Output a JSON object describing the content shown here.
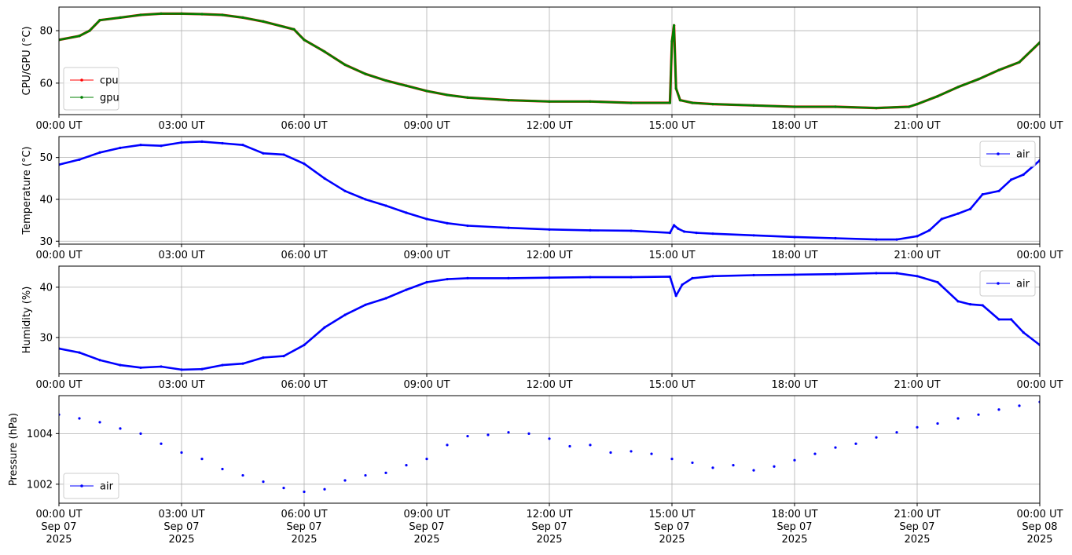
{
  "chart_data": [
    {
      "type": "line",
      "ylabel": "CPU/GPU (°C)",
      "xlim": [
        "2025-09-07T00:00",
        "2025-09-08T00:00"
      ],
      "ylim": [
        48,
        89
      ],
      "yticks": [
        60,
        80
      ],
      "ytick_labels": [
        "60",
        "80"
      ],
      "xtick_labels": [
        "00:00 UT",
        "03:00 UT",
        "06:00 UT",
        "09:00 UT",
        "12:00 UT",
        "15:00 UT",
        "18:00 UT",
        "21:00 UT",
        "00:00 UT"
      ],
      "grid": true,
      "legend": "lower-left",
      "x": [
        0,
        0.5,
        0.75,
        1.0,
        1.5,
        2.0,
        2.5,
        3.0,
        3.5,
        4.0,
        4.5,
        5.0,
        5.5,
        5.75,
        6.0,
        6.5,
        7.0,
        7.5,
        8.0,
        8.5,
        9.0,
        9.5,
        10.0,
        11.0,
        12.0,
        13.0,
        14.0,
        14.95,
        15.0,
        15.05,
        15.1,
        15.2,
        15.5,
        16.0,
        17.0,
        18.0,
        19.0,
        20.0,
        20.8,
        21.0,
        21.5,
        22.0,
        22.5,
        23.0,
        23.5,
        24.0
      ],
      "series": [
        {
          "name": "cpu",
          "color": "#ff0000",
          "values": [
            76.5,
            78.0,
            80.0,
            84.0,
            85.0,
            86.0,
            86.5,
            86.5,
            86.3,
            86.0,
            85.0,
            83.5,
            81.5,
            80.5,
            76.5,
            72.0,
            67.0,
            63.5,
            61.0,
            59.0,
            57.0,
            55.5,
            54.5,
            53.5,
            53.0,
            53.0,
            52.5,
            52.5,
            76.0,
            82.0,
            58.0,
            53.5,
            52.5,
            52.0,
            51.5,
            51.0,
            51.0,
            50.5,
            51.0,
            52.0,
            55.0,
            58.5,
            61.5,
            65.0,
            68.0,
            75.5
          ]
        },
        {
          "name": "gpu",
          "color": "#008000",
          "values": [
            76.5,
            78.0,
            80.0,
            84.0,
            85.0,
            86.0,
            86.5,
            86.5,
            86.3,
            86.0,
            85.0,
            83.5,
            81.5,
            80.5,
            76.5,
            72.0,
            67.0,
            63.5,
            61.0,
            59.0,
            57.0,
            55.5,
            54.5,
            53.5,
            53.0,
            53.0,
            52.5,
            52.5,
            76.0,
            82.0,
            58.0,
            53.5,
            52.5,
            52.0,
            51.5,
            51.0,
            51.0,
            50.5,
            51.0,
            52.0,
            55.0,
            58.5,
            61.5,
            65.0,
            68.0,
            75.5
          ]
        }
      ]
    },
    {
      "type": "line",
      "ylabel": "Temperature (°C)",
      "xlim": [
        "2025-09-07T00:00",
        "2025-09-08T00:00"
      ],
      "ylim": [
        29.3,
        55
      ],
      "yticks": [
        30,
        40,
        50
      ],
      "ytick_labels": [
        "30",
        "40",
        "50"
      ],
      "xtick_labels": [
        "00:00 UT",
        "03:00 UT",
        "06:00 UT",
        "09:00 UT",
        "12:00 UT",
        "15:00 UT",
        "18:00 UT",
        "21:00 UT",
        "00:00 UT"
      ],
      "grid": true,
      "legend": "upper-right",
      "x": [
        0,
        0.5,
        1.0,
        1.5,
        2.0,
        2.5,
        3.0,
        3.5,
        4.0,
        4.5,
        5.0,
        5.5,
        6.0,
        6.5,
        7.0,
        7.5,
        8.0,
        8.5,
        9.0,
        9.5,
        10.0,
        11.0,
        12.0,
        13.0,
        14.0,
        14.95,
        15.05,
        15.15,
        15.3,
        15.6,
        16.0,
        17.0,
        18.0,
        19.0,
        20.0,
        20.5,
        21.0,
        21.3,
        21.6,
        22.0,
        22.3,
        22.6,
        23.0,
        23.3,
        23.6,
        24.0
      ],
      "series": [
        {
          "name": "air",
          "color": "#0000ff",
          "values": [
            48.3,
            49.5,
            51.2,
            52.3,
            53.0,
            52.8,
            53.6,
            53.8,
            53.4,
            53.0,
            51.0,
            50.7,
            48.5,
            45.0,
            42.0,
            40.0,
            38.5,
            36.8,
            35.3,
            34.3,
            33.7,
            33.2,
            32.8,
            32.6,
            32.5,
            32.0,
            33.8,
            33.0,
            32.3,
            32.0,
            31.8,
            31.4,
            31.0,
            30.7,
            30.4,
            30.4,
            31.2,
            32.6,
            35.3,
            36.6,
            37.7,
            41.2,
            42.0,
            44.7,
            45.9,
            49.3
          ]
        }
      ]
    },
    {
      "type": "line",
      "ylabel": "Humidity (%)",
      "xlim": [
        "2025-09-07T00:00",
        "2025-09-08T00:00"
      ],
      "ylim": [
        22.8,
        44.2
      ],
      "yticks": [
        30,
        40
      ],
      "ytick_labels": [
        "30",
        "40"
      ],
      "xtick_labels": [
        "00:00 UT",
        "03:00 UT",
        "06:00 UT",
        "09:00 UT",
        "12:00 UT",
        "15:00 UT",
        "18:00 UT",
        "21:00 UT",
        "00:00 UT"
      ],
      "grid": true,
      "legend": "upper-right",
      "x": [
        0,
        0.5,
        1.0,
        1.5,
        2.0,
        2.5,
        3.0,
        3.5,
        4.0,
        4.5,
        5.0,
        5.5,
        6.0,
        6.5,
        7.0,
        7.5,
        8.0,
        8.5,
        9.0,
        9.5,
        10.0,
        11.0,
        12.0,
        13.0,
        14.0,
        14.95,
        15.1,
        15.25,
        15.5,
        16.0,
        17.0,
        18.0,
        19.0,
        20.0,
        20.5,
        21.0,
        21.5,
        22.0,
        22.3,
        22.6,
        23.0,
        23.3,
        23.6,
        24.0
      ],
      "series": [
        {
          "name": "air",
          "color": "#0000ff",
          "values": [
            27.8,
            27.0,
            25.5,
            24.5,
            24.0,
            24.2,
            23.6,
            23.7,
            24.5,
            24.8,
            26.0,
            26.3,
            28.5,
            32.0,
            34.5,
            36.5,
            37.8,
            39.5,
            41.0,
            41.6,
            41.8,
            41.8,
            41.9,
            42.0,
            42.0,
            42.1,
            38.3,
            40.5,
            41.8,
            42.2,
            42.4,
            42.5,
            42.6,
            42.8,
            42.8,
            42.2,
            41.0,
            37.2,
            36.6,
            36.4,
            33.6,
            33.6,
            31.0,
            28.5
          ]
        }
      ]
    },
    {
      "type": "scatter",
      "ylabel": "Pressure (hPa)",
      "xlim": [
        "2025-09-07T00:00",
        "2025-09-08T00:00"
      ],
      "ylim": [
        1001.25,
        1005.5
      ],
      "yticks": [
        1002,
        1004
      ],
      "ytick_labels": [
        "1002",
        "1004"
      ],
      "xtick_labels": [
        "00:00 UT\nSep 07\n2025",
        "03:00 UT\nSep 07\n2025",
        "06:00 UT\nSep 07\n2025",
        "09:00 UT\nSep 07\n2025",
        "12:00 UT\nSep 07\n2025",
        "15:00 UT\nSep 07\n2025",
        "18:00 UT\nSep 07\n2025",
        "21:00 UT\nSep 07\n2025",
        "00:00 UT\nSep 08\n2025"
      ],
      "grid": true,
      "legend": "lower-left",
      "x": [
        0,
        0.5,
        1.0,
        1.5,
        2.0,
        2.5,
        3.0,
        3.5,
        4.0,
        4.5,
        5.0,
        5.5,
        6.0,
        6.5,
        7.0,
        7.5,
        8.0,
        8.5,
        9.0,
        9.5,
        10.0,
        10.5,
        11.0,
        11.5,
        12.0,
        12.5,
        13.0,
        13.5,
        14.0,
        14.5,
        15.0,
        15.5,
        16.0,
        16.5,
        17.0,
        17.5,
        18.0,
        18.5,
        19.0,
        19.5,
        20.0,
        20.5,
        21.0,
        21.5,
        22.0,
        22.5,
        23.0,
        23.5,
        24.0
      ],
      "series": [
        {
          "name": "air",
          "color": "#0000ff",
          "values": [
            1004.75,
            1004.6,
            1004.45,
            1004.2,
            1004.0,
            1003.6,
            1003.25,
            1003.0,
            1002.6,
            1002.35,
            1002.1,
            1001.85,
            1001.7,
            1001.8,
            1002.15,
            1002.35,
            1002.45,
            1002.75,
            1003.0,
            1003.55,
            1003.9,
            1003.95,
            1004.05,
            1004.0,
            1003.8,
            1003.5,
            1003.55,
            1003.25,
            1003.3,
            1003.2,
            1003.0,
            1002.85,
            1002.65,
            1002.75,
            1002.55,
            1002.7,
            1002.95,
            1003.2,
            1003.45,
            1003.6,
            1003.85,
            1004.05,
            1004.25,
            1004.4,
            1004.6,
            1004.75,
            1004.95,
            1005.1,
            1005.25
          ]
        }
      ]
    }
  ]
}
